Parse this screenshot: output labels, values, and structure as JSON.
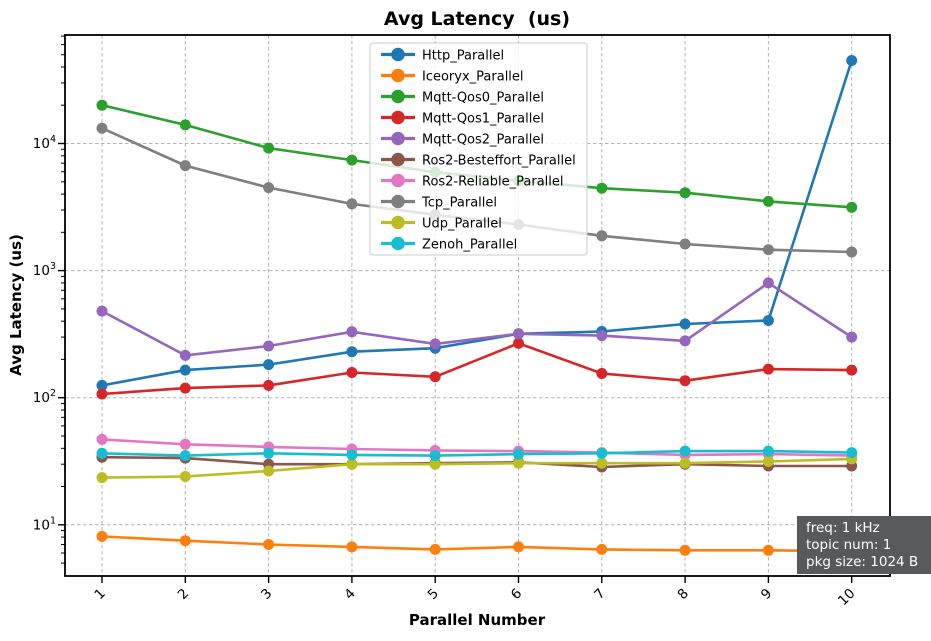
{
  "title": "Avg Latency  (us)",
  "title_color": "#2347a8",
  "chart_data": {
    "type": "line",
    "x": [
      1,
      2,
      3,
      4,
      5,
      6,
      7,
      8,
      9,
      10
    ],
    "xlabel": "Parallel Number",
    "ylabel": "Avg Latency (us)",
    "yscale": "log",
    "ylim": [
      4,
      72000
    ],
    "yticks": [
      10,
      100,
      1000,
      10000
    ],
    "grid": true,
    "legend_position": "upper center",
    "series": [
      {
        "name": "Http_Parallel",
        "color": "#1f77b4",
        "values": [
          125,
          165,
          182,
          230,
          245,
          318,
          332,
          380,
          405,
          45000
        ]
      },
      {
        "name": "Iceoryx_Parallel",
        "color": "#ff7f0e",
        "values": [
          8.1,
          7.5,
          7.0,
          6.7,
          6.4,
          6.7,
          6.4,
          6.3,
          6.3,
          6.2
        ]
      },
      {
        "name": "Mqtt-Qos0_Parallel",
        "color": "#2ca02c",
        "values": [
          20000,
          14000,
          9200,
          7400,
          5950,
          5100,
          4450,
          4100,
          3500,
          3150
        ]
      },
      {
        "name": "Mqtt-Qos1_Parallel",
        "color": "#d62728",
        "values": [
          107,
          119,
          125,
          158,
          146,
          268,
          155,
          136,
          168,
          165
        ]
      },
      {
        "name": "Mqtt-Qos2_Parallel",
        "color": "#9467bd",
        "values": [
          480,
          215,
          255,
          330,
          265,
          318,
          308,
          280,
          800,
          300
        ]
      },
      {
        "name": "Ros2-Besteffort_Parallel",
        "color": "#8c564b",
        "values": [
          34,
          33.5,
          30,
          30,
          30.5,
          31,
          28.5,
          30,
          29,
          29
        ]
      },
      {
        "name": "Ros2-Reliable_Parallel",
        "color": "#e377c2",
        "values": [
          47,
          43,
          41,
          39.5,
          38.5,
          38,
          37,
          35.5,
          36,
          35
        ]
      },
      {
        "name": "Tcp_Parallel",
        "color": "#7f7f7f",
        "values": [
          13200,
          6700,
          4500,
          3350,
          2750,
          2300,
          1880,
          1620,
          1460,
          1400
        ]
      },
      {
        "name": "Udp_Parallel",
        "color": "#bcbd22",
        "values": [
          23.5,
          24,
          26.5,
          30,
          30,
          30.5,
          30.5,
          30.5,
          31.5,
          33
        ]
      },
      {
        "name": "Zenoh_Parallel",
        "color": "#17becf",
        "values": [
          36.5,
          35,
          36.5,
          35.5,
          35,
          36,
          36.5,
          38,
          38,
          37
        ]
      }
    ]
  },
  "annotation": {
    "lines": [
      "freq: 1 kHz",
      "topic num: 1",
      "pkg size: 1024 B"
    ],
    "bg_color": "#58595b",
    "text_color": "#ffffff"
  }
}
